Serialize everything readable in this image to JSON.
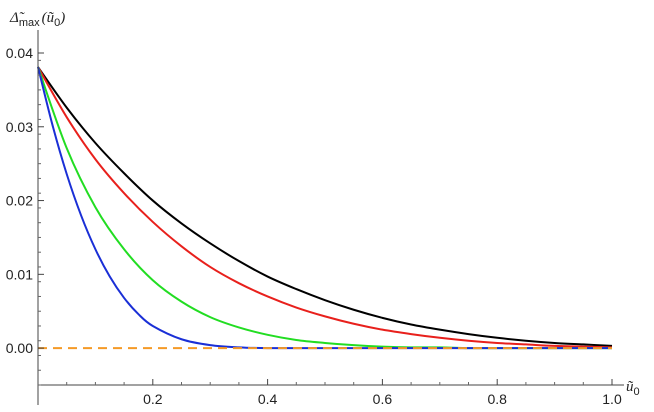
{
  "chart_data": {
    "type": "line",
    "title": "",
    "xlabel": {
      "base": "ũ",
      "sub": "0"
    },
    "ylabel": {
      "base": "Δ̃",
      "sub": "max",
      "arg_open": "(ũ",
      "arg_sub": "0",
      "arg_close": ")"
    },
    "xlim": [
      0.0,
      1.0
    ],
    "ylim": [
      -0.005,
      0.04
    ],
    "xticks": [
      0.2,
      0.4,
      0.6,
      0.8,
      1.0
    ],
    "xtick_labels": [
      "0.2",
      "0.4",
      "0.6",
      "0.8",
      "1.0"
    ],
    "yticks": [
      0.0,
      0.01,
      0.02,
      0.03,
      0.04
    ],
    "ytick_labels": [
      "0.00",
      "0.01",
      "0.02",
      "0.03",
      "0.04"
    ],
    "grid": false,
    "legend": "none",
    "series": [
      {
        "color": "#000000",
        "style": "solid",
        "x": [
          0.0,
          0.05,
          0.1,
          0.15,
          0.2,
          0.25,
          0.3,
          0.35,
          0.4,
          0.45,
          0.5,
          0.55,
          0.6,
          0.65,
          0.7,
          0.75,
          0.8,
          0.85,
          0.9,
          0.95,
          1.0
        ],
        "y": [
          0.0381,
          0.0326,
          0.0278,
          0.0237,
          0.02,
          0.0169,
          0.0142,
          0.0118,
          0.0097,
          0.008,
          0.0065,
          0.0052,
          0.0041,
          0.0032,
          0.0025,
          0.0019,
          0.0014,
          0.001,
          0.0007,
          0.0005,
          0.0003
        ]
      },
      {
        "color": "#e8201c",
        "style": "solid",
        "x": [
          0.0,
          0.05,
          0.1,
          0.15,
          0.2,
          0.25,
          0.3,
          0.35,
          0.4,
          0.45,
          0.5,
          0.55,
          0.6,
          0.65,
          0.7,
          0.75,
          0.8,
          0.85,
          0.9,
          0.95,
          1.0
        ],
        "y": [
          0.0381,
          0.0313,
          0.0256,
          0.021,
          0.0171,
          0.0138,
          0.011,
          0.0088,
          0.007,
          0.0055,
          0.0043,
          0.0033,
          0.0025,
          0.0019,
          0.0014,
          0.001,
          0.0007,
          0.0005,
          0.0003,
          0.0002,
          0.0001
        ]
      },
      {
        "color": "#22dd22",
        "style": "solid",
        "x": [
          0.0,
          0.05,
          0.1,
          0.15,
          0.2,
          0.25,
          0.3,
          0.35,
          0.4,
          0.45,
          0.5,
          0.55,
          0.6,
          0.65,
          0.7,
          0.75,
          0.8,
          0.85,
          0.9,
          0.95,
          1.0
        ],
        "y": [
          0.0381,
          0.0271,
          0.0191,
          0.0134,
          0.0092,
          0.0063,
          0.0042,
          0.0028,
          0.0018,
          0.0011,
          0.0007,
          0.0004,
          0.0002,
          0.0001,
          0.0001,
          0.0,
          0.0,
          0.0,
          0.0,
          0.0,
          0.0
        ]
      },
      {
        "color": "#1a2fd6",
        "style": "solid",
        "x": [
          0.0,
          0.025,
          0.05,
          0.075,
          0.1,
          0.125,
          0.15,
          0.175,
          0.2,
          0.25,
          0.3,
          0.35,
          0.4,
          0.5,
          0.6,
          0.7,
          0.8,
          0.9,
          1.0
        ],
        "y": [
          0.0381,
          0.0303,
          0.0236,
          0.018,
          0.0134,
          0.0097,
          0.0068,
          0.0046,
          0.003,
          0.0012,
          0.0004,
          0.0001,
          0.0,
          0.0,
          0.0,
          0.0,
          0.0,
          0.0,
          0.0
        ]
      },
      {
        "color": "#f59a26",
        "style": "dashed",
        "x": [
          0.0,
          1.0
        ],
        "y": [
          0.0,
          0.0
        ]
      }
    ]
  }
}
